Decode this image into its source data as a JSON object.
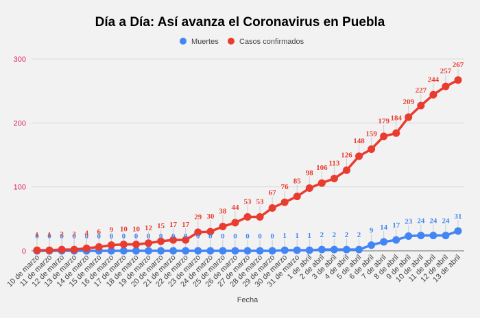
{
  "chart_data": {
    "type": "line",
    "title": "Día a Día: Así avanza el Coronavirus en Puebla",
    "xlabel": "Fecha",
    "ylabel": "",
    "ylim": [
      0,
      300
    ],
    "yticks": [
      "0",
      "100",
      "200",
      "300"
    ],
    "ytick_values": [
      0,
      100,
      200,
      300
    ],
    "grid": true,
    "legend_position": "top-center",
    "categories": [
      "10 de marzo",
      "11 de marzo",
      "12 de marzo",
      "13 de marzo",
      "14 de marzo",
      "15 de marzo",
      "16 de marzo",
      "17 de marzo",
      "18 de marzo",
      "19 de marzo",
      "20 de marzo",
      "21 de marzo",
      "22 de marzo",
      "23 de marzo",
      "24 de marzo",
      "25 de marzo",
      "26 de marzo",
      "27 de marzo",
      "28 de marzo",
      "29 de marzo",
      "30 de marzo",
      "31 de marzo",
      "1 de abril",
      "2 de abril",
      "3 de abril",
      "4 de abril",
      "5 de abril",
      "6 de abril",
      "7 de abril",
      "8 de abril",
      "9 de abril",
      "10 de abril",
      "11 de abril",
      "12 de abril",
      "13 de abril"
    ],
    "series": [
      {
        "name": "Muertes",
        "color": "#4285f4",
        "values": [
          0,
          0,
          0,
          0,
          0,
          0,
          0,
          0,
          0,
          0,
          0,
          0,
          0,
          0,
          0,
          0,
          0,
          0,
          0,
          0,
          1,
          1,
          1,
          2,
          2,
          2,
          2,
          9,
          14,
          17,
          23,
          24,
          24,
          24,
          31
        ]
      },
      {
        "name": "Casos confirmados",
        "color": "#ea3b2f",
        "values": [
          1,
          1,
          2,
          2,
          4,
          6,
          9,
          10,
          10,
          12,
          15,
          17,
          17,
          29,
          30,
          38,
          44,
          53,
          53,
          67,
          76,
          85,
          98,
          106,
          113,
          126,
          148,
          159,
          179,
          184,
          209,
          227,
          244,
          257,
          267
        ]
      }
    ]
  },
  "colors": {
    "background": "#f2f2f2",
    "ytick": "#e0245e",
    "grid": "#d9d9d9"
  }
}
